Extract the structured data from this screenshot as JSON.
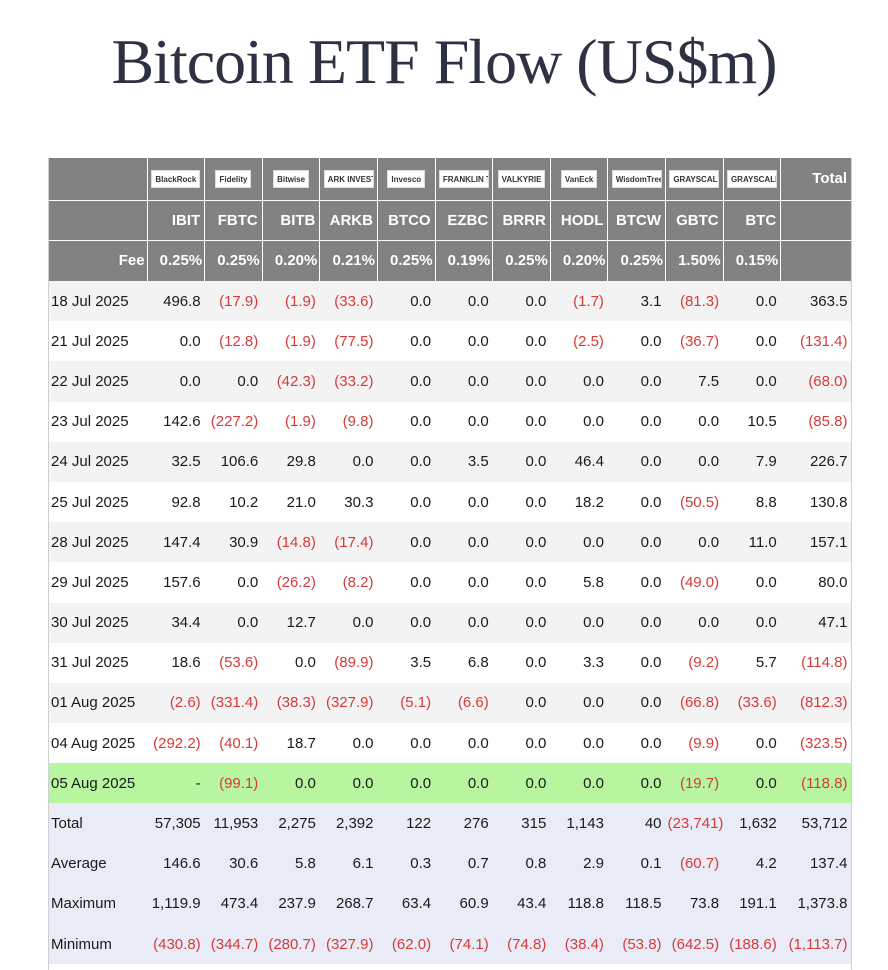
{
  "title": "Bitcoin ETF Flow (US$m)",
  "header": {
    "total_label": "Total",
    "fee_label": "Fee",
    "issuers": [
      {
        "logo": "BlackRock",
        "ticker": "IBIT",
        "fee": "0.25%"
      },
      {
        "logo": "Fidelity",
        "ticker": "FBTC",
        "fee": "0.25%"
      },
      {
        "logo": "Bitwise",
        "ticker": "BITB",
        "fee": "0.20%"
      },
      {
        "logo": "ARK INVEST",
        "ticker": "ARKB",
        "fee": "0.21%"
      },
      {
        "logo": "Invesco",
        "ticker": "BTCO",
        "fee": "0.25%"
      },
      {
        "logo": "FRANKLIN TEMPLETON",
        "ticker": "EZBC",
        "fee": "0.19%"
      },
      {
        "logo": "VALKYRIE",
        "ticker": "BRRR",
        "fee": "0.25%"
      },
      {
        "logo": "VanEck",
        "ticker": "HODL",
        "fee": "0.20%"
      },
      {
        "logo": "WisdomTree",
        "ticker": "BTCW",
        "fee": "0.25%"
      },
      {
        "logo": "GRAYSCALE",
        "ticker": "GBTC",
        "fee": "1.50%"
      },
      {
        "logo": "GRAYSCALE",
        "ticker": "BTC",
        "fee": "0.15%"
      }
    ]
  },
  "rows": [
    {
      "date": "18 Jul 2025",
      "cells": [
        "496.8",
        "(17.9)",
        "(1.9)",
        "(33.6)",
        "0.0",
        "0.0",
        "0.0",
        "(1.7)",
        "3.1",
        "(81.3)",
        "0.0",
        "363.5"
      ]
    },
    {
      "date": "21 Jul 2025",
      "cells": [
        "0.0",
        "(12.8)",
        "(1.9)",
        "(77.5)",
        "0.0",
        "0.0",
        "0.0",
        "(2.5)",
        "0.0",
        "(36.7)",
        "0.0",
        "(131.4)"
      ]
    },
    {
      "date": "22 Jul 2025",
      "cells": [
        "0.0",
        "0.0",
        "(42.3)",
        "(33.2)",
        "0.0",
        "0.0",
        "0.0",
        "0.0",
        "0.0",
        "7.5",
        "0.0",
        "(68.0)"
      ]
    },
    {
      "date": "23 Jul 2025",
      "cells": [
        "142.6",
        "(227.2)",
        "(1.9)",
        "(9.8)",
        "0.0",
        "0.0",
        "0.0",
        "0.0",
        "0.0",
        "0.0",
        "10.5",
        "(85.8)"
      ]
    },
    {
      "date": "24 Jul 2025",
      "cells": [
        "32.5",
        "106.6",
        "29.8",
        "0.0",
        "0.0",
        "3.5",
        "0.0",
        "46.4",
        "0.0",
        "0.0",
        "7.9",
        "226.7"
      ]
    },
    {
      "date": "25 Jul 2025",
      "cells": [
        "92.8",
        "10.2",
        "21.0",
        "30.3",
        "0.0",
        "0.0",
        "0.0",
        "18.2",
        "0.0",
        "(50.5)",
        "8.8",
        "130.8"
      ]
    },
    {
      "date": "28 Jul 2025",
      "cells": [
        "147.4",
        "30.9",
        "(14.8)",
        "(17.4)",
        "0.0",
        "0.0",
        "0.0",
        "0.0",
        "0.0",
        "0.0",
        "11.0",
        "157.1"
      ]
    },
    {
      "date": "29 Jul 2025",
      "cells": [
        "157.6",
        "0.0",
        "(26.2)",
        "(8.2)",
        "0.0",
        "0.0",
        "0.0",
        "5.8",
        "0.0",
        "(49.0)",
        "0.0",
        "80.0"
      ]
    },
    {
      "date": "30 Jul 2025",
      "cells": [
        "34.4",
        "0.0",
        "12.7",
        "0.0",
        "0.0",
        "0.0",
        "0.0",
        "0.0",
        "0.0",
        "0.0",
        "0.0",
        "47.1"
      ]
    },
    {
      "date": "31 Jul 2025",
      "cells": [
        "18.6",
        "(53.6)",
        "0.0",
        "(89.9)",
        "3.5",
        "6.8",
        "0.0",
        "3.3",
        "0.0",
        "(9.2)",
        "5.7",
        "(114.8)"
      ]
    },
    {
      "date": "01 Aug 2025",
      "cells": [
        "(2.6)",
        "(331.4)",
        "(38.3)",
        "(327.9)",
        "(5.1)",
        "(6.6)",
        "0.0",
        "0.0",
        "0.0",
        "(66.8)",
        "(33.6)",
        "(812.3)"
      ]
    },
    {
      "date": "04 Aug 2025",
      "cells": [
        "(292.2)",
        "(40.1)",
        "18.7",
        "0.0",
        "0.0",
        "0.0",
        "0.0",
        "0.0",
        "0.0",
        "(9.9)",
        "0.0",
        "(323.5)"
      ]
    },
    {
      "date": "05 Aug 2025",
      "latest": true,
      "cells": [
        "-",
        "(99.1)",
        "0.0",
        "0.0",
        "0.0",
        "0.0",
        "0.0",
        "0.0",
        "0.0",
        "(19.7)",
        "0.0",
        "(118.8)"
      ]
    }
  ],
  "summary": [
    {
      "label": "Total",
      "cells": [
        "57,305",
        "11,953",
        "2,275",
        "2,392",
        "122",
        "276",
        "315",
        "1,143",
        "40",
        "(23,741)",
        "1,632",
        "53,712"
      ]
    },
    {
      "label": "Average",
      "cells": [
        "146.6",
        "30.6",
        "5.8",
        "6.1",
        "0.3",
        "0.7",
        "0.8",
        "2.9",
        "0.1",
        "(60.7)",
        "4.2",
        "137.4"
      ]
    },
    {
      "label": "Maximum",
      "cells": [
        "1,119.9",
        "473.4",
        "237.9",
        "268.7",
        "63.4",
        "60.9",
        "43.4",
        "118.8",
        "118.5",
        "73.8",
        "191.1",
        "1,373.8"
      ]
    },
    {
      "label": "Minimum",
      "cells": [
        "(430.8)",
        "(344.7)",
        "(280.7)",
        "(327.9)",
        "(62.0)",
        "(74.1)",
        "(74.8)",
        "(38.4)",
        "(53.8)",
        "(642.5)",
        "(188.6)",
        "(1,113.7)"
      ]
    }
  ],
  "colors": {
    "header_bg": "#828282",
    "negative": "#d63a3a",
    "latest_row": "#b7f59f",
    "summary_bg": "#e9ecf7"
  }
}
